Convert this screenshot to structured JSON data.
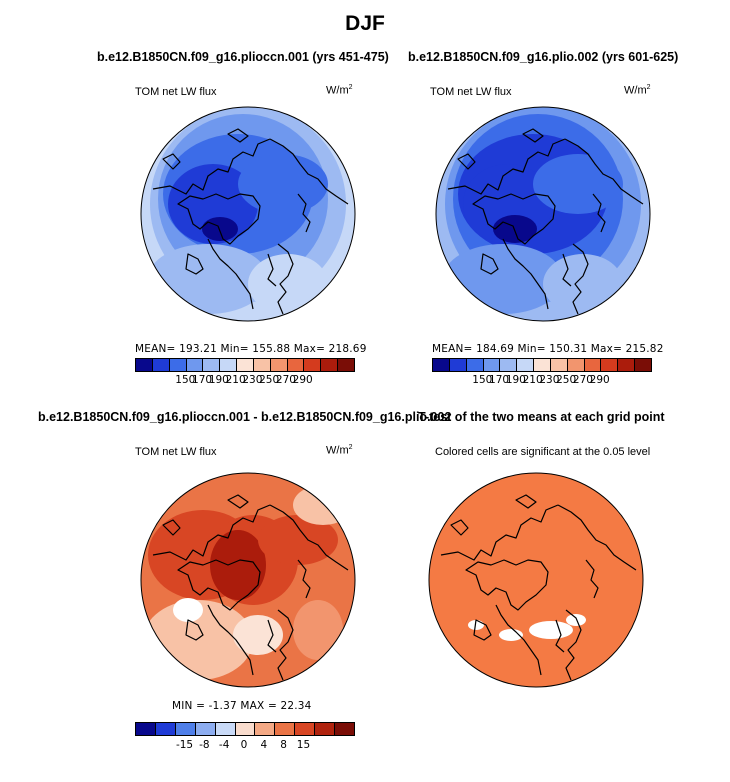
{
  "figure": {
    "title": "DJF",
    "colors": {
      "land_outline": "#000000",
      "background": "#ffffff"
    }
  },
  "panels": [
    {
      "name": "model-a",
      "title": "b.e12.B1850CN.f09_g16.plioccn.001 (yrs 451-475)",
      "left_label": "TOM net LW flux",
      "units_base": "W/m",
      "units_exp": "2",
      "stats": "MEAN= 193.21  Min= 155.88  Max= 218.69"
    },
    {
      "name": "model-b",
      "title": "b.e12.B1850CN.f09_g16.plio.002 (yrs 601-625)",
      "left_label": "TOM net LW flux",
      "units_base": "W/m",
      "units_exp": "2",
      "stats": "MEAN= 184.69  Min= 150.31  Max= 215.82"
    },
    {
      "name": "difference",
      "title": "b.e12.B1850CN.f09_g16.plioccn.001 - b.e12.B1850CN.f09_g16.plio.002",
      "left_label": "TOM net LW flux",
      "units_base": "W/m",
      "units_exp": "2",
      "stats": "MIN =  -1.37 MAX =  22.34"
    },
    {
      "name": "ttest",
      "title": "T-test of the two means at each grid point",
      "left_label": "Colored cells are significant at the 0.05 level"
    }
  ],
  "colorbars": {
    "absolute": {
      "labels": [
        "150",
        "170",
        "190",
        "210",
        "230",
        "250",
        "270",
        "290"
      ],
      "colors": [
        "#08088c",
        "#1f3bd6",
        "#3c6ce8",
        "#6f98ee",
        "#9dbaf2",
        "#c6d8f7",
        "#fbe3d6",
        "#f8c2a6",
        "#f2956e",
        "#e8663e",
        "#d43b1e",
        "#ab1c0c",
        "#7a0d06"
      ]
    },
    "difference": {
      "labels": [
        "-15",
        "-8",
        "-4",
        "0",
        "4",
        "8",
        "15"
      ],
      "colors": [
        "#08088c",
        "#1f3bd6",
        "#4f7fe9",
        "#8dadf0",
        "#c9daf7",
        "#f9dccd",
        "#f4a985",
        "#ea7446",
        "#d84624",
        "#b0230e",
        "#7a0d06"
      ]
    }
  },
  "maps": {
    "model_a_base": "#5a8ae8",
    "model_b_base": "#4a78e4",
    "diff_base": "#ec7a4c",
    "ttest_base": "#f47a44"
  }
}
